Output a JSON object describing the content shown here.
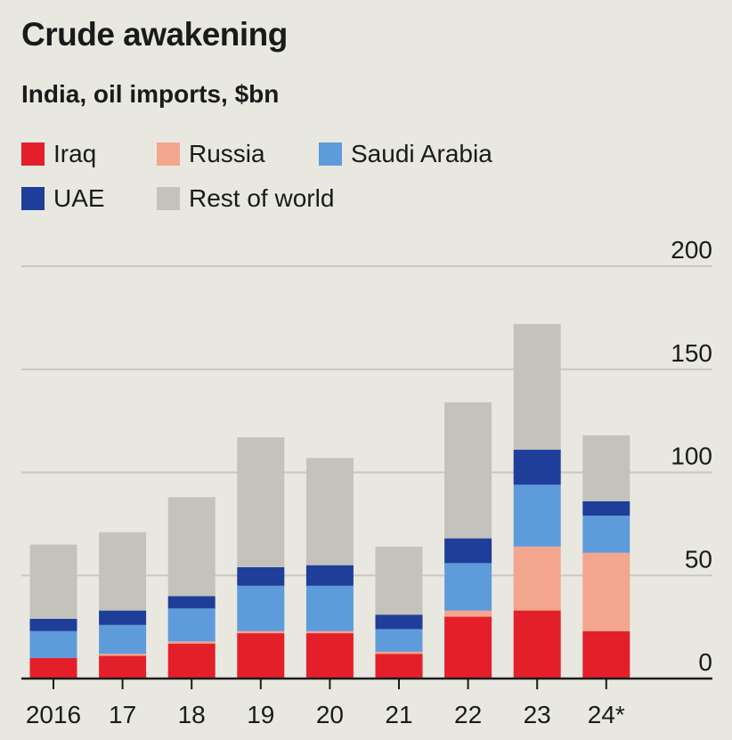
{
  "title": "Crude awakening",
  "subtitle": "India, oil imports, $bn",
  "legend": [
    {
      "label": "Iraq",
      "color": "#e3202a"
    },
    {
      "label": "Russia",
      "color": "#f4a58e"
    },
    {
      "label": "Saudi Arabia",
      "color": "#5e9bdb"
    },
    {
      "label": "UAE",
      "color": "#1f3e9a"
    },
    {
      "label": "Rest of world",
      "color": "#c3c3bb"
    }
  ],
  "chart_data": {
    "type": "bar",
    "stacked": true,
    "title": "Crude awakening",
    "subtitle": "India, oil imports, $bn",
    "xlabel": "",
    "ylabel": "",
    "ylim": [
      0,
      200
    ],
    "yticks": [
      0,
      50,
      100,
      150,
      200
    ],
    "grid": true,
    "legend_position": "top-left",
    "categories": [
      "2016",
      "17",
      "18",
      "19",
      "20",
      "21",
      "22",
      "23",
      "24*"
    ],
    "series": [
      {
        "name": "Iraq",
        "color": "#e3202a",
        "values": [
          10,
          11,
          17,
          22,
          22,
          12,
          30,
          33,
          23
        ]
      },
      {
        "name": "Russia",
        "color": "#f4a58e",
        "values": [
          0,
          1,
          1,
          1,
          1,
          1,
          3,
          31,
          38
        ]
      },
      {
        "name": "Saudi Arabia",
        "color": "#5e9bdb",
        "values": [
          13,
          14,
          16,
          22,
          22,
          11,
          23,
          30,
          18
        ]
      },
      {
        "name": "UAE",
        "color": "#1f3e9a",
        "values": [
          6,
          7,
          6,
          9,
          10,
          7,
          12,
          17,
          7
        ]
      },
      {
        "name": "Rest of world",
        "color": "#c3c3bb",
        "values": [
          36,
          38,
          48,
          63,
          52,
          33,
          66,
          61,
          32
        ]
      }
    ]
  }
}
